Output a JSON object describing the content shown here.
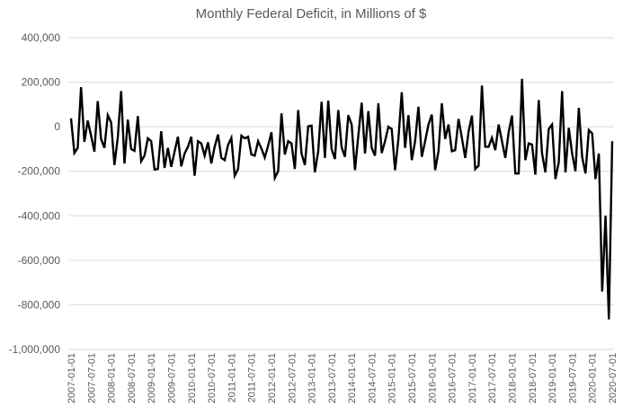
{
  "chart_data": {
    "type": "line",
    "title": "Monthly Federal Deficit, in Millions of $",
    "xlabel": "",
    "ylabel": "",
    "ylim": [
      -1000000,
      400000
    ],
    "y_ticks": [
      400000,
      200000,
      0,
      -200000,
      -400000,
      -600000,
      -800000,
      -1000000
    ],
    "y_tick_labels": [
      "400,000",
      "200,000",
      "0",
      "-200,000",
      "-400,000",
      "-600,000",
      "-800,000",
      "-1,000,000"
    ],
    "x_start": "2007-01",
    "x_tick_labels": [
      "2007-01-01",
      "2007-07-01",
      "2008-01-01",
      "2008-07-01",
      "2009-01-01",
      "2009-07-01",
      "2010-01-01",
      "2010-07-01",
      "2011-01-01",
      "2011-07-01",
      "2012-01-01",
      "2012-07-01",
      "2013-01-01",
      "2013-07-01",
      "2014-01-01",
      "2014-07-01",
      "2015-01-01",
      "2015-07-01",
      "2016-01-01",
      "2016-07-01",
      "2017-01-01",
      "2017-07-01",
      "2018-01-01",
      "2018-07-01",
      "2019-01-01",
      "2019-07-01",
      "2020-01-01",
      "2020-07-01"
    ],
    "grid": true,
    "legend": "none",
    "series": [
      {
        "values": [
          38000,
          -118000,
          -95000,
          178000,
          -68000,
          28000,
          -40000,
          -112000,
          115000,
          -55000,
          -95000,
          52000,
          20000,
          -172000,
          -48000,
          160000,
          -165000,
          32000,
          -100000,
          -108000,
          48000,
          -155000,
          -130000,
          -52000,
          -65000,
          -192000,
          -190000,
          -20000,
          -185000,
          -95000,
          -180000,
          -112000,
          -45000,
          -178000,
          -120000,
          -90000,
          -45000,
          -220000,
          -65000,
          -75000,
          -130000,
          -70000,
          -165000,
          -90000,
          -35000,
          -140000,
          -150000,
          -82000,
          -50000,
          -220000,
          -190000,
          -40000,
          -52000,
          -45000,
          -125000,
          -130000,
          -65000,
          -98000,
          -138000,
          -85000,
          -25000,
          -230000,
          -200000,
          60000,
          -125000,
          -65000,
          -75000,
          -190000,
          75000,
          -120000,
          -172000,
          2000,
          5000,
          -205000,
          -110000,
          112000,
          -140000,
          118000,
          -100000,
          -145000,
          75000,
          -92000,
          -135000,
          52000,
          10000,
          -195000,
          -40000,
          108000,
          -120000,
          70000,
          -95000,
          -130000,
          105000,
          -118000,
          -65000,
          0,
          -10000,
          -195000,
          -55000,
          155000,
          -95000,
          52000,
          -150000,
          -65000,
          90000,
          -135000,
          -65000,
          10000,
          55000,
          -195000,
          -110000,
          105000,
          -55000,
          10000,
          -110000,
          -105000,
          35000,
          -50000,
          -140000,
          -22000,
          50000,
          -190000,
          -175000,
          185000,
          -90000,
          -90000,
          -50000,
          -105000,
          10000,
          -65000,
          -140000,
          -25000,
          50000,
          -210000,
          -210000,
          215000,
          -150000,
          -75000,
          -80000,
          -215000,
          120000,
          -120000,
          -205000,
          -10000,
          10000,
          -235000,
          -160000,
          160000,
          -205000,
          -5000,
          -120000,
          -200000,
          85000,
          -135000,
          -210000,
          -15000,
          -30000,
          -235000,
          -120000,
          -740000,
          -400000,
          -865000,
          -65000
        ]
      }
    ]
  }
}
